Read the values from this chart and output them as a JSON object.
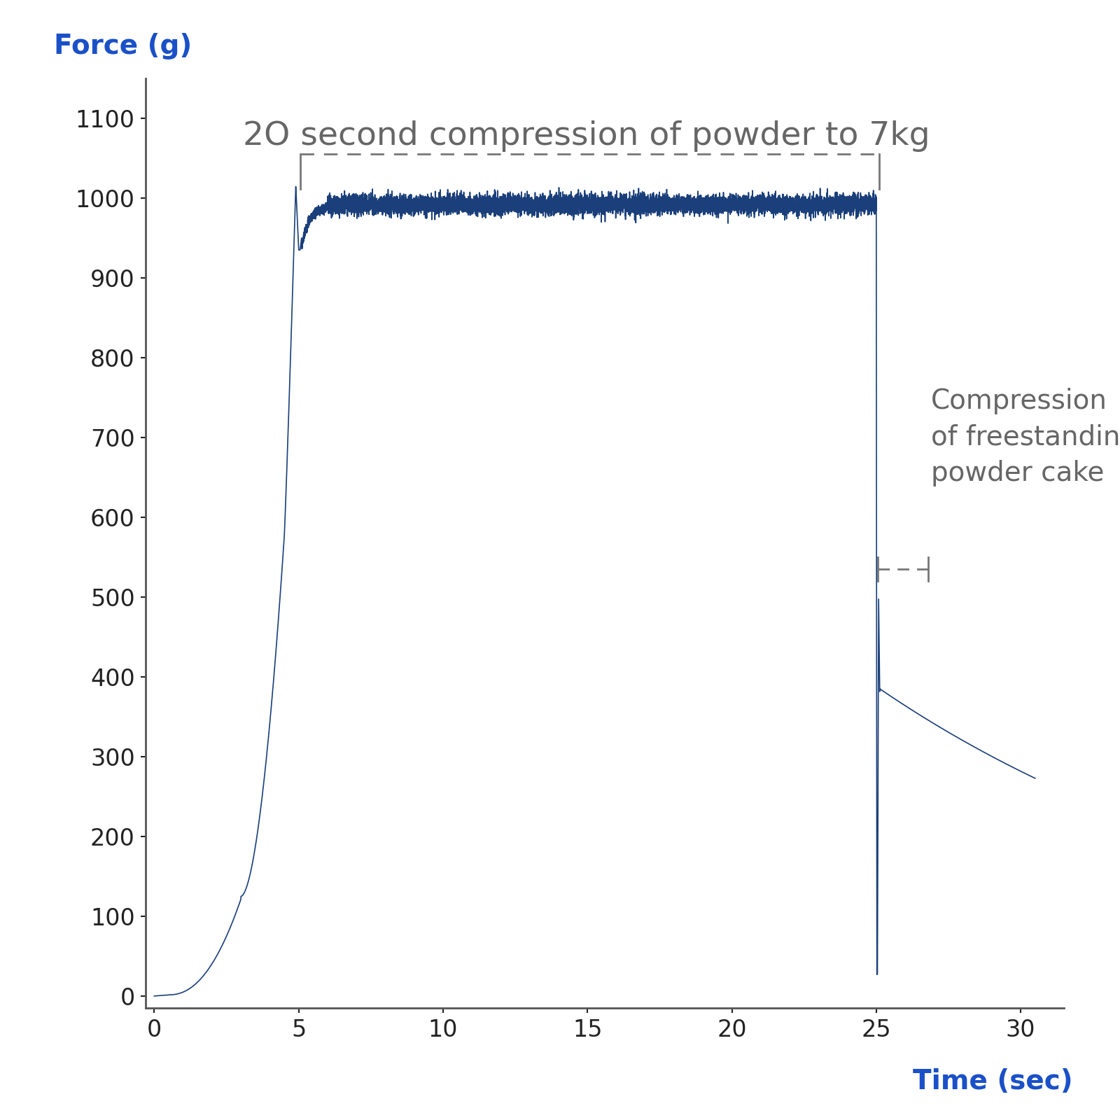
{
  "ylabel": "Force (g)",
  "xlabel": "Time (sec)",
  "ylabel_color": "#1a50c8",
  "xlabel_color": "#1a50c8",
  "title": "2O second compression of powder to 7kg",
  "title_color": "#666666",
  "title_fontsize": 34,
  "axis_label_fontsize": 28,
  "tick_fontsize": 24,
  "line_color": "#1a3f7a",
  "line_width": 1.2,
  "annotation_color": "#666666",
  "annotation_fontsize": 28,
  "xlim": [
    -0.3,
    31.5
  ],
  "ylim": [
    -15,
    1150
  ],
  "xticks": [
    0,
    5,
    10,
    15,
    20,
    25,
    30
  ],
  "yticks": [
    0,
    100,
    200,
    300,
    400,
    500,
    600,
    700,
    800,
    900,
    1000,
    1100
  ],
  "bracket1_x1": 5.05,
  "bracket1_x2": 25.1,
  "bracket1_y": 1055,
  "bracket2_x1": 25.05,
  "bracket2_x2": 26.8,
  "bracket2_y": 535,
  "noise_amplitude": 6,
  "noise_seed": 42
}
